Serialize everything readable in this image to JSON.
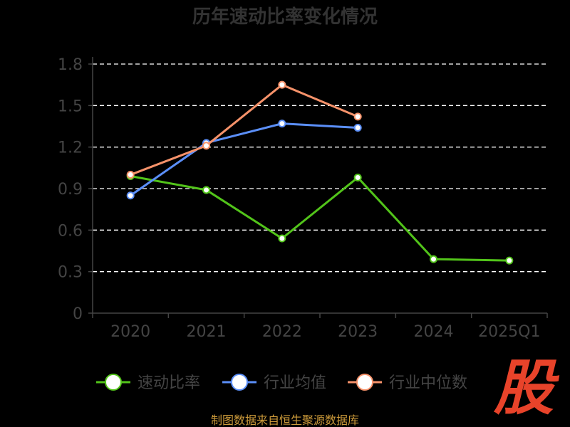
{
  "chart_data": {
    "type": "line",
    "title": "历年速动比率变化情况",
    "categories": [
      "2020",
      "2021",
      "2022",
      "2023",
      "2024",
      "2025Q1"
    ],
    "series": [
      {
        "name": "速动比率",
        "color": "#52c41a",
        "values": [
          0.99,
          0.89,
          0.54,
          0.98,
          0.39,
          0.38
        ]
      },
      {
        "name": "行业均值",
        "color": "#5b8ff9",
        "values": [
          0.85,
          1.23,
          1.37,
          1.34,
          null,
          null
        ]
      },
      {
        "name": "行业中位数",
        "color": "#f6926a",
        "values": [
          1.0,
          1.21,
          1.65,
          1.42,
          null,
          null
        ]
      }
    ],
    "y_ticks": [
      "0",
      "0.3",
      "0.6",
      "0.9",
      "1.2",
      "1.5",
      "1.8"
    ],
    "ylim": [
      0,
      1.8
    ],
    "grid": true,
    "legend_position": "bottom"
  },
  "source": "制图数据来自恒生聚源数据库",
  "logo_text": "股"
}
